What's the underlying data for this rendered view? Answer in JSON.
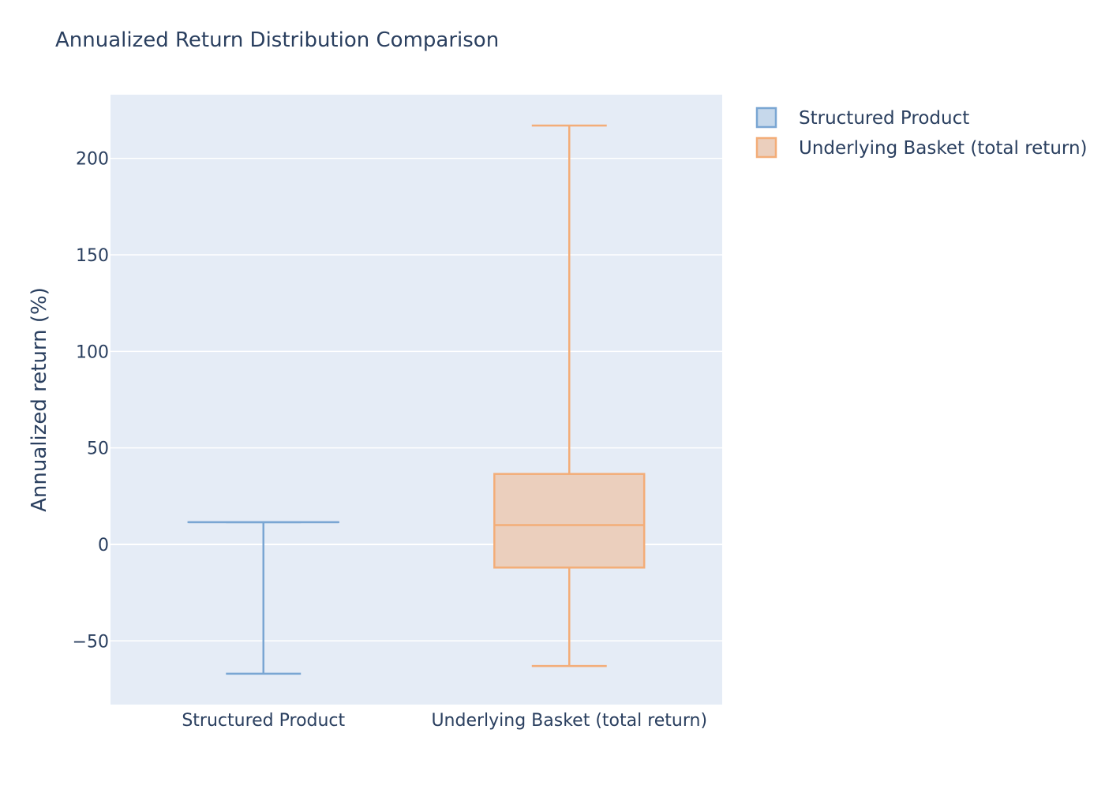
{
  "chart_data": {
    "type": "box",
    "title": "Annualized Return Distribution Comparison",
    "ylabel": "Annualized return (%)",
    "xlabel": "",
    "ylim": [
      -83,
      233
    ],
    "yticks": [
      -50,
      0,
      50,
      100,
      150,
      200
    ],
    "ytick_labels": [
      "−50",
      "0",
      "50",
      "100",
      "150",
      "200"
    ],
    "grid": true,
    "legend_position": "top-right",
    "categories": [
      "Structured Product",
      "Underlying Basket (total return)"
    ],
    "series": [
      {
        "name": "Structured Product",
        "color": "#7aa6d3",
        "fill": "#c6d8eb",
        "min": -67,
        "q1": 11.5,
        "median": 11.5,
        "q3": 11.5,
        "max": 11.5
      },
      {
        "name": "Underlying Basket (total return)",
        "color": "#f3ad78",
        "fill": "#ebcfbd",
        "min": -63,
        "q1": -12,
        "median": 10,
        "q3": 36.5,
        "max": 217
      }
    ],
    "colors": {
      "plot_bg": "#e5ecf6",
      "grid": "#ffffff",
      "text": "#2a3f5f"
    }
  }
}
